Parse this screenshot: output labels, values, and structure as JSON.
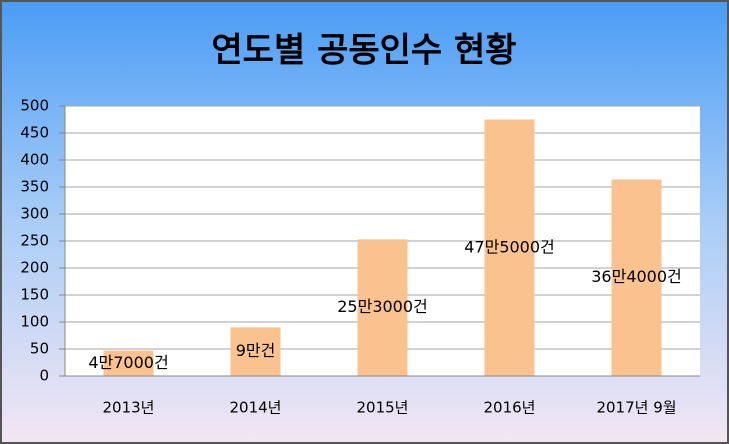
{
  "chart_data": {
    "type": "bar",
    "title": "연도별 공동인수 현황",
    "categories": [
      "2013년",
      "2014년",
      "2015년",
      "2016년",
      "2017년 9월"
    ],
    "values": [
      47,
      90,
      253,
      475,
      364
    ],
    "value_labels": [
      "4만7000건",
      "9만건",
      "25만3000건",
      "47만5000건",
      "36만4000건"
    ],
    "color": "#fac28f",
    "ylim": [
      0,
      500
    ],
    "yticks": [
      0,
      50,
      100,
      150,
      200,
      250,
      300,
      350,
      400,
      450,
      500
    ],
    "grid": true
  }
}
